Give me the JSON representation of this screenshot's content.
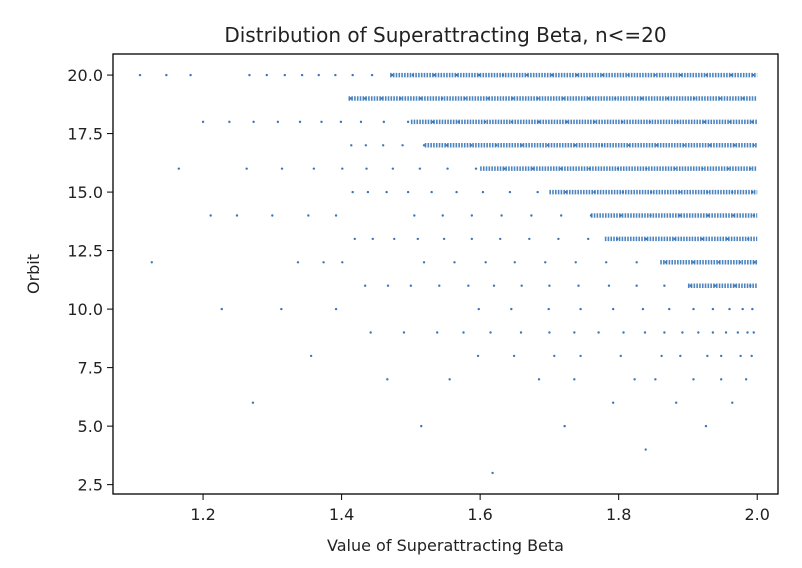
{
  "chart_data": {
    "type": "scatter",
    "title": "Distribution of Superattracting Beta, n<=20",
    "xlabel": "Value of Superattracting Beta",
    "ylabel": "Orbit",
    "xlim": [
      1.07,
      2.03
    ],
    "ylim": [
      2.1,
      20.9
    ],
    "xticks": [
      1.2,
      1.4,
      1.6,
      1.8,
      2.0
    ],
    "xtick_labels": [
      "1.2",
      "1.4",
      "1.6",
      "1.8",
      "2.0"
    ],
    "yticks": [
      2.5,
      5.0,
      7.5,
      10.0,
      12.5,
      15.0,
      17.5,
      20.0
    ],
    "ytick_labels": [
      "2.5",
      "5.0",
      "7.5",
      "10.0",
      "12.5",
      "15.0",
      "17.5",
      "20.0"
    ],
    "grid": false,
    "legend": "none",
    "marker_color": "#3b78b7",
    "series": [
      {
        "points": [
          [
            1.618,
            3
          ],
          [
            1.515,
            5
          ],
          [
            1.722,
            5
          ],
          [
            1.926,
            5
          ],
          [
            1.839,
            4
          ],
          [
            1.272,
            6
          ],
          [
            1.792,
            6
          ],
          [
            1.883,
            6
          ],
          [
            1.964,
            6
          ],
          [
            1.466,
            7
          ],
          [
            1.556,
            7
          ],
          [
            1.685,
            7
          ],
          [
            1.736,
            7
          ],
          [
            1.823,
            7
          ],
          [
            1.853,
            7
          ],
          [
            1.908,
            7
          ],
          [
            1.948,
            7
          ],
          [
            1.984,
            7
          ],
          [
            1.356,
            8
          ],
          [
            1.597,
            8
          ],
          [
            1.649,
            8
          ],
          [
            1.707,
            8
          ],
          [
            1.745,
            8
          ],
          [
            1.803,
            8
          ],
          [
            1.862,
            8
          ],
          [
            1.889,
            8
          ],
          [
            1.928,
            8
          ],
          [
            1.948,
            8
          ],
          [
            1.976,
            8
          ],
          [
            1.992,
            8
          ],
          [
            1.442,
            9
          ],
          [
            1.49,
            9
          ],
          [
            1.538,
            9
          ],
          [
            1.576,
            9
          ],
          [
            1.615,
            9
          ],
          [
            1.659,
            9
          ],
          [
            1.7,
            9
          ],
          [
            1.736,
            9
          ],
          [
            1.771,
            9
          ],
          [
            1.807,
            9
          ],
          [
            1.838,
            9
          ],
          [
            1.866,
            9
          ],
          [
            1.892,
            9
          ],
          [
            1.915,
            9
          ],
          [
            1.936,
            9
          ],
          [
            1.955,
            9
          ],
          [
            1.972,
            9
          ],
          [
            1.986,
            9
          ],
          [
            1.995,
            9
          ],
          [
            1.227,
            10
          ],
          [
            1.313,
            10
          ],
          [
            1.392,
            10
          ],
          [
            1.598,
            10
          ],
          [
            1.645,
            10
          ],
          [
            1.699,
            10
          ],
          [
            1.745,
            10
          ],
          [
            1.792,
            10
          ],
          [
            1.835,
            10
          ],
          [
            1.873,
            10
          ],
          [
            1.908,
            10
          ],
          [
            1.936,
            10
          ],
          [
            1.96,
            10
          ],
          [
            1.979,
            10
          ],
          [
            1.993,
            10
          ],
          [
            1.434,
            11
          ],
          [
            1.467,
            11
          ],
          [
            1.5,
            11
          ],
          [
            1.541,
            11
          ],
          [
            1.583,
            11
          ],
          [
            1.62,
            11
          ],
          [
            1.66,
            11
          ],
          [
            1.7,
            11
          ],
          [
            1.742,
            11
          ],
          [
            1.786,
            11
          ],
          [
            1.826,
            11
          ],
          [
            1.866,
            11
          ],
          [
            1.904,
            11
          ],
          [
            1.939,
            11
          ],
          [
            1.968,
            11
          ],
          [
            1.99,
            11
          ],
          [
            1.126,
            12
          ],
          [
            1.337,
            12
          ],
          [
            1.374,
            12
          ],
          [
            1.401,
            12
          ],
          [
            1.519,
            12
          ],
          [
            1.563,
            12
          ],
          [
            1.608,
            12
          ],
          [
            1.65,
            12
          ],
          [
            1.694,
            12
          ],
          [
            1.738,
            12
          ],
          [
            1.782,
            12
          ],
          [
            1.826,
            12
          ],
          [
            1.868,
            12
          ],
          [
            1.908,
            12
          ],
          [
            1.945,
            12
          ],
          [
            1.975,
            12
          ],
          [
            1.996,
            12
          ],
          [
            1.419,
            13
          ],
          [
            1.445,
            13
          ],
          [
            1.476,
            13
          ],
          [
            1.51,
            13
          ],
          [
            1.548,
            13
          ],
          [
            1.588,
            13
          ],
          [
            1.629,
            13
          ],
          [
            1.671,
            13
          ],
          [
            1.713,
            13
          ],
          [
            1.756,
            13
          ],
          [
            1.798,
            13
          ],
          [
            1.84,
            13
          ],
          [
            1.881,
            13
          ],
          [
            1.921,
            13
          ],
          [
            1.957,
            13
          ],
          [
            1.987,
            13
          ],
          [
            1.211,
            14
          ],
          [
            1.249,
            14
          ],
          [
            1.3,
            14
          ],
          [
            1.352,
            14
          ],
          [
            1.392,
            14
          ],
          [
            1.505,
            14
          ],
          [
            1.546,
            14
          ],
          [
            1.588,
            14
          ],
          [
            1.631,
            14
          ],
          [
            1.674,
            14
          ],
          [
            1.717,
            14
          ],
          [
            1.76,
            14
          ],
          [
            1.803,
            14
          ],
          [
            1.846,
            14
          ],
          [
            1.888,
            14
          ],
          [
            1.929,
            14
          ],
          [
            1.966,
            14
          ],
          [
            1.995,
            14
          ],
          [
            1.416,
            15
          ],
          [
            1.438,
            15
          ],
          [
            1.465,
            15
          ],
          [
            1.496,
            15
          ],
          [
            1.53,
            15
          ],
          [
            1.566,
            15
          ],
          [
            1.604,
            15
          ],
          [
            1.643,
            15
          ],
          [
            1.683,
            15
          ],
          [
            1.724,
            15
          ],
          [
            1.765,
            15
          ],
          [
            1.806,
            15
          ],
          [
            1.847,
            15
          ],
          [
            1.888,
            15
          ],
          [
            1.928,
            15
          ],
          [
            1.964,
            15
          ],
          [
            1.993,
            15
          ],
          [
            1.165,
            16
          ],
          [
            1.263,
            16
          ],
          [
            1.314,
            16
          ],
          [
            1.36,
            16
          ],
          [
            1.401,
            16
          ],
          [
            1.436,
            16
          ],
          [
            1.474,
            16
          ],
          [
            1.513,
            16
          ],
          [
            1.553,
            16
          ],
          [
            1.594,
            16
          ],
          [
            1.635,
            16
          ],
          [
            1.676,
            16
          ],
          [
            1.717,
            16
          ],
          [
            1.758,
            16
          ],
          [
            1.799,
            16
          ],
          [
            1.84,
            16
          ],
          [
            1.881,
            16
          ],
          [
            1.921,
            16
          ],
          [
            1.958,
            16
          ],
          [
            1.99,
            16
          ],
          [
            1.414,
            17
          ],
          [
            1.435,
            17
          ],
          [
            1.46,
            17
          ],
          [
            1.488,
            17
          ],
          [
            1.519,
            17
          ],
          [
            1.552,
            17
          ],
          [
            1.587,
            17
          ],
          [
            1.623,
            17
          ],
          [
            1.66,
            17
          ],
          [
            1.698,
            17
          ],
          [
            1.737,
            17
          ],
          [
            1.776,
            17
          ],
          [
            1.815,
            17
          ],
          [
            1.855,
            17
          ],
          [
            1.894,
            17
          ],
          [
            1.932,
            17
          ],
          [
            1.967,
            17
          ],
          [
            1.995,
            17
          ],
          [
            1.2,
            18
          ],
          [
            1.238,
            18
          ],
          [
            1.273,
            18
          ],
          [
            1.308,
            18
          ],
          [
            1.34,
            18
          ],
          [
            1.371,
            18
          ],
          [
            1.399,
            18
          ],
          [
            1.428,
            18
          ],
          [
            1.461,
            18
          ],
          [
            1.496,
            18
          ],
          [
            1.532,
            18
          ],
          [
            1.569,
            18
          ],
          [
            1.607,
            18
          ],
          [
            1.646,
            18
          ],
          [
            1.685,
            18
          ],
          [
            1.725,
            18
          ],
          [
            1.765,
            18
          ],
          [
            1.805,
            18
          ],
          [
            1.845,
            18
          ],
          [
            1.885,
            18
          ],
          [
            1.924,
            18
          ],
          [
            1.961,
            18
          ],
          [
            1.993,
            18
          ],
          [
            1.413,
            19
          ],
          [
            1.434,
            19
          ],
          [
            1.458,
            19
          ],
          [
            1.485,
            19
          ],
          [
            1.514,
            19
          ],
          [
            1.545,
            19
          ],
          [
            1.578,
            19
          ],
          [
            1.612,
            19
          ],
          [
            1.647,
            19
          ],
          [
            1.683,
            19
          ],
          [
            1.72,
            19
          ],
          [
            1.757,
            19
          ],
          [
            1.795,
            19
          ],
          [
            1.833,
            19
          ],
          [
            1.871,
            19
          ],
          [
            1.909,
            19
          ],
          [
            1.946,
            19
          ],
          [
            1.98,
            19
          ],
          [
            1.109,
            20
          ],
          [
            1.147,
            20
          ],
          [
            1.182,
            20
          ],
          [
            1.267,
            20
          ],
          [
            1.292,
            20
          ],
          [
            1.318,
            20
          ],
          [
            1.343,
            20
          ],
          [
            1.367,
            20
          ],
          [
            1.391,
            20
          ],
          [
            1.416,
            20
          ],
          [
            1.444,
            20
          ],
          [
            1.473,
            20
          ],
          [
            1.503,
            20
          ],
          [
            1.534,
            20
          ],
          [
            1.566,
            20
          ],
          [
            1.599,
            20
          ],
          [
            1.633,
            20
          ],
          [
            1.668,
            20
          ],
          [
            1.704,
            20
          ],
          [
            1.74,
            20
          ],
          [
            1.777,
            20
          ],
          [
            1.814,
            20
          ],
          [
            1.852,
            20
          ],
          [
            1.89,
            20
          ],
          [
            1.927,
            20
          ],
          [
            1.963,
            20
          ],
          [
            1.994,
            20
          ]
        ],
        "dense_rows": [
          {
            "y": 20,
            "x_range": [
              1.47,
              2.0
            ]
          },
          {
            "y": 19,
            "x_range": [
              1.41,
              2.0
            ]
          },
          {
            "y": 18,
            "x_range": [
              1.5,
              2.0
            ]
          },
          {
            "y": 17,
            "x_range": [
              1.52,
              2.0
            ]
          },
          {
            "y": 16,
            "x_range": [
              1.6,
              2.0
            ]
          },
          {
            "y": 15,
            "x_range": [
              1.7,
              2.0
            ]
          },
          {
            "y": 14,
            "x_range": [
              1.76,
              2.0
            ]
          },
          {
            "y": 13,
            "x_range": [
              1.78,
              2.0
            ]
          },
          {
            "y": 12,
            "x_range": [
              1.86,
              2.0
            ]
          },
          {
            "y": 11,
            "x_range": [
              1.9,
              2.0
            ]
          }
        ]
      }
    ]
  }
}
